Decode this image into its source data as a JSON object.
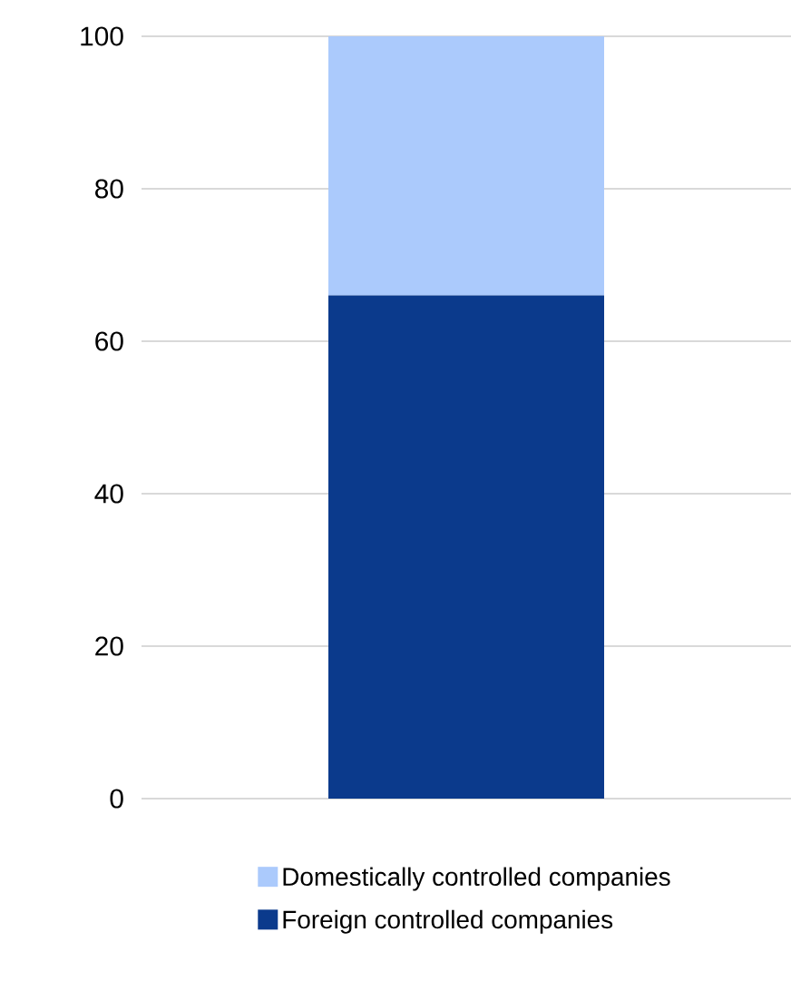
{
  "chart_data": {
    "type": "bar",
    "stacked": true,
    "categories": [
      null
    ],
    "series": [
      {
        "name": "Foreign controlled companies",
        "color": "#0b3a8c",
        "values": [
          66
        ]
      },
      {
        "name": "Domestically controlled companies",
        "color": "#abcafc",
        "values": [
          34
        ]
      }
    ],
    "ylim": [
      0,
      100
    ],
    "yticks": [
      0,
      20,
      40,
      60,
      80,
      100
    ],
    "grid": "y",
    "legend": "bottom"
  }
}
